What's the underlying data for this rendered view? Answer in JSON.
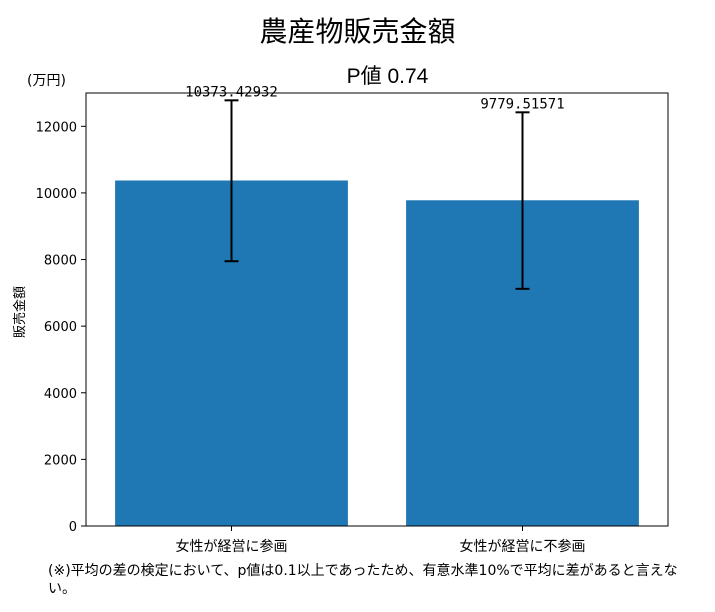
{
  "chart_data": {
    "type": "bar",
    "title": "農産物販売金額",
    "subtitle": "P値 0.74",
    "unit_label": "(万円)",
    "ylabel": "販売金額",
    "xlabel": "",
    "categories": [
      "女性が経営に参画",
      "女性が経営に不参画"
    ],
    "values": [
      10373.42932,
      9779.51571
    ],
    "value_labels": [
      "10373.42932",
      "9779.51571"
    ],
    "error_low": [
      7950,
      7120
    ],
    "error_high": [
      12780,
      12420
    ],
    "ylim": [
      0,
      13000
    ],
    "yticks": [
      0,
      2000,
      4000,
      6000,
      8000,
      10000,
      12000
    ],
    "bar_color": "#1f77b4",
    "grid": false,
    "legend": "none"
  },
  "note": "(※)平均の差の検定において、p値は0.1以上であったため、有意水準10%で平均に差があると言えない。"
}
